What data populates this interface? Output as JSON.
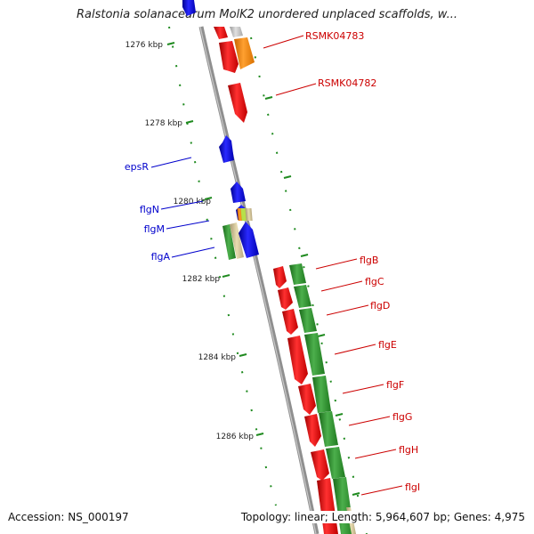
{
  "header": {
    "title": "Ralstonia solanacearum MolK2 unordered unplaced scaffolds, w..."
  },
  "footer": {
    "accession": "Accession: NS_000197",
    "summary": "Topology: linear; Length: 5,964,607 bp; Genes: 4,975"
  },
  "scale": {
    "ticks": [
      "1276 kbp",
      "1278 kbp",
      "1280 kbp",
      "1282 kbp",
      "1284 kbp",
      "1286 kbp"
    ]
  },
  "genes": {
    "reverse_strand_labels": [
      "epsR",
      "flgN",
      "flgM",
      "flgA"
    ],
    "forward_strand_labels": [
      "RSMK04783",
      "RSMK04782",
      "flgB",
      "flgC",
      "flgD",
      "flgE",
      "flgF",
      "flgG",
      "flgH",
      "flgI"
    ]
  },
  "colors": {
    "backbone": "#8f8f8f",
    "forward_label": "#cc0000",
    "reverse_label": "#0000cc",
    "tick": "#1f8a1f",
    "gene_red": "#ff0000",
    "gene_blue": "#0000ff",
    "gene_green": "#2e8b2e",
    "gene_orange": "#ff8c00",
    "gene_gray": "#bdbdbd"
  }
}
